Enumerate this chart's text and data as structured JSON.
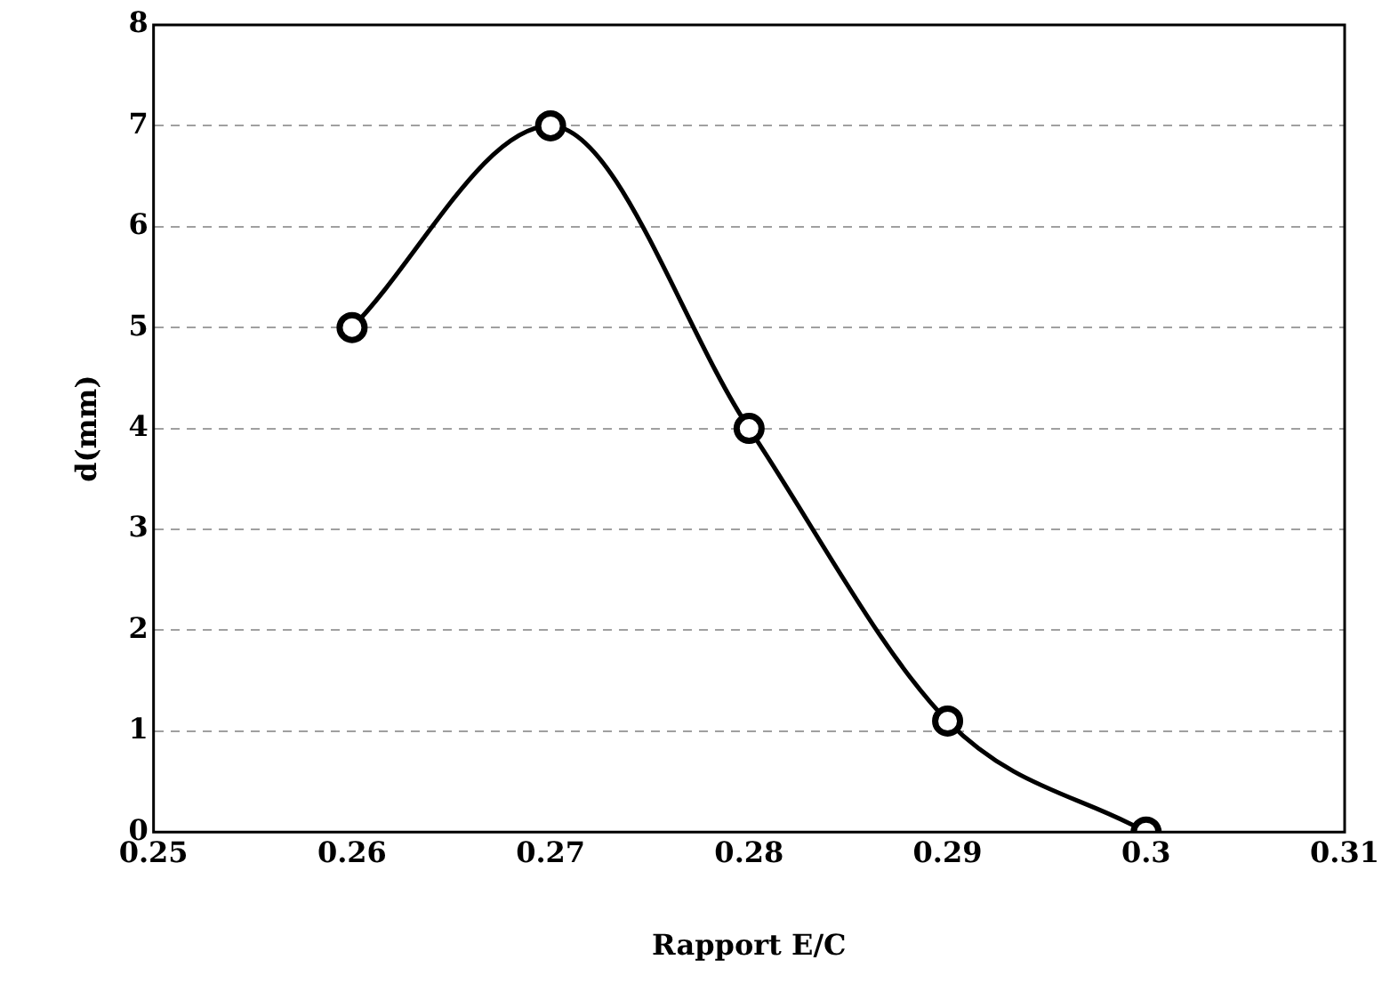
{
  "chart_data": {
    "type": "line",
    "xlabel": "Rapport E/C",
    "ylabel": "d(mm)",
    "x": [
      0.26,
      0.27,
      0.28,
      0.29,
      0.3
    ],
    "series": [
      {
        "color": "#000000",
        "values": [
          5,
          7,
          4,
          1.1,
          0
        ]
      }
    ],
    "xlim": [
      0.25,
      0.31
    ],
    "xticks": [
      0.25,
      0.26,
      0.27,
      0.28,
      0.29,
      0.3,
      0.31
    ],
    "ylim": [
      0,
      8
    ],
    "yticks": [
      0,
      1,
      2,
      3,
      4,
      5,
      6,
      7,
      8
    ],
    "grid": "y",
    "marker": "circle",
    "line_style": "solid",
    "legend": false
  }
}
